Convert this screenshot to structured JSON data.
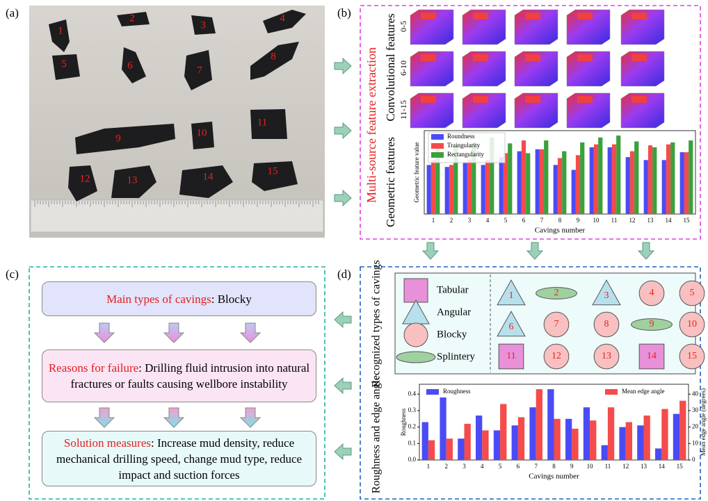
{
  "panel_labels": [
    "(a)",
    "(b)",
    "(c)",
    "(d)"
  ],
  "photo": {
    "labels": [
      "1",
      "2",
      "3",
      "4",
      "5",
      "6",
      "7",
      "8",
      "9",
      "10",
      "11",
      "12",
      "13",
      "14",
      "15"
    ]
  },
  "feature_extraction": {
    "title": "Multi-source feature extraction",
    "conv_label": "Convolutional features",
    "conv_rows": [
      "0-5",
      "6-10",
      "11-15"
    ],
    "geo_label": "Geometric features"
  },
  "chart_data": [
    {
      "type": "bar",
      "xlabel": "Cavings number",
      "ylabel": "Geometric feature value",
      "categories": [
        "1",
        "2",
        "3",
        "4",
        "5",
        "6",
        "7",
        "8",
        "9",
        "10",
        "11",
        "12",
        "13",
        "14",
        "15"
      ],
      "ylim": [
        0,
        0.85
      ],
      "legend": "upper left",
      "series": [
        {
          "name": "Roundness",
          "color": "#4b4bf5",
          "values": [
            0.5,
            0.48,
            0.52,
            0.5,
            0.58,
            0.64,
            0.66,
            0.5,
            0.45,
            0.68,
            0.68,
            0.58,
            0.55,
            0.55,
            0.63
          ]
        },
        {
          "name": "Traingularity",
          "color": "#f54b4b",
          "values": [
            0.55,
            0.5,
            0.55,
            0.55,
            0.62,
            0.75,
            0.66,
            0.57,
            0.6,
            0.71,
            0.71,
            0.64,
            0.7,
            0.71,
            0.63
          ]
        },
        {
          "name": "Rectangularity",
          "color": "#3ca03c",
          "values": [
            0.7,
            0.7,
            0.72,
            0.78,
            0.72,
            0.62,
            0.75,
            0.64,
            0.73,
            0.78,
            0.8,
            0.74,
            0.68,
            0.73,
            0.75
          ]
        }
      ]
    },
    {
      "type": "bar",
      "xlabel": "Cavings number",
      "ylabel": "Roughness",
      "y2label": "Mean edge angle (degrees)",
      "categories": [
        "1",
        "2",
        "3",
        "4",
        "5",
        "6",
        "7",
        "8",
        "9",
        "10",
        "11",
        "12",
        "13",
        "14",
        "15"
      ],
      "ylim": [
        0,
        0.46
      ],
      "yticks": [
        {
          "value": 0,
          "label": "0.0"
        },
        0.1,
        0.2,
        0.3,
        0.4
      ],
      "y2lim": [
        0,
        46
      ],
      "y2ticks": [
        0,
        10,
        20,
        30,
        40
      ],
      "series": [
        {
          "name": "Roughness",
          "color": "#4b4bf5",
          "legend": "upper left",
          "values": [
            0.23,
            0.38,
            0.13,
            0.27,
            0.18,
            0.21,
            0.32,
            0.43,
            0.25,
            0.32,
            0.09,
            0.2,
            0.21,
            0.07,
            0.28
          ]
        },
        {
          "name": "Mean edge angle",
          "color": "#f54b4b",
          "legend": "upper right",
          "axis": "y2",
          "values": [
            12,
            13,
            22,
            18,
            34,
            26,
            43,
            25,
            19,
            24,
            32,
            23,
            27,
            31,
            36
          ]
        }
      ]
    }
  ],
  "conclusions": {
    "items": [
      {
        "label": "Main types of cavings",
        "text": ": Blocky"
      },
      {
        "label": "Reasons for failure",
        "text": ": Drilling fluid intrusion into natural fractures or faults causing wellbore instability"
      },
      {
        "label": "Solution measures",
        "text": ": Increase mud density, reduce mechanical drilling speed, change mud type, reduce impact and suction forces"
      }
    ]
  },
  "recognition": {
    "title": "Recognized types of cavings",
    "chart_label": "Roughness and edge angle",
    "legend": [
      {
        "shape": "square",
        "label": "Tabular"
      },
      {
        "shape": "triangle",
        "label": "Angular"
      },
      {
        "shape": "circle",
        "label": "Blocky"
      },
      {
        "shape": "ellipse",
        "label": "Splintery"
      }
    ],
    "samples": [
      {
        "label": "1",
        "shape": "triangle"
      },
      {
        "label": "2",
        "shape": "ellipse"
      },
      {
        "label": "3",
        "shape": "triangle"
      },
      {
        "label": "4",
        "shape": "circle"
      },
      {
        "label": "5",
        "shape": "circle"
      },
      {
        "label": "6",
        "shape": "triangle"
      },
      {
        "label": "7",
        "shape": "circle"
      },
      {
        "label": "8",
        "shape": "circle"
      },
      {
        "label": "9",
        "shape": "ellipse"
      },
      {
        "label": "10",
        "shape": "circle"
      },
      {
        "label": "11",
        "shape": "square"
      },
      {
        "label": "12",
        "shape": "circle"
      },
      {
        "label": "13",
        "shape": "circle"
      },
      {
        "label": "14",
        "shape": "square"
      },
      {
        "label": "15",
        "shape": "circle"
      }
    ]
  }
}
